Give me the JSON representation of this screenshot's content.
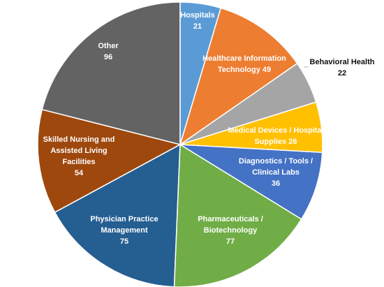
{
  "chart_data": {
    "type": "pie",
    "categories": [
      "Hospitals",
      "Healthcare Information Technology",
      "Behavioral Health",
      "Medical Devices / Hospital Supplies",
      "Diagnostics / Tools / Clinical Labs",
      "Pharmaceuticals / Biotechnology",
      "Physician Practice Management",
      "Skilled Nursing and Assisted Living Facilities",
      "Other"
    ],
    "values": [
      21,
      49,
      22,
      26,
      36,
      77,
      75,
      54,
      96
    ],
    "colors": [
      "#5b9bd5",
      "#ed7d31",
      "#a5a5a5",
      "#ffc000",
      "#4472c4",
      "#70ad47",
      "#255e91",
      "#9e480e",
      "#636363"
    ]
  }
}
